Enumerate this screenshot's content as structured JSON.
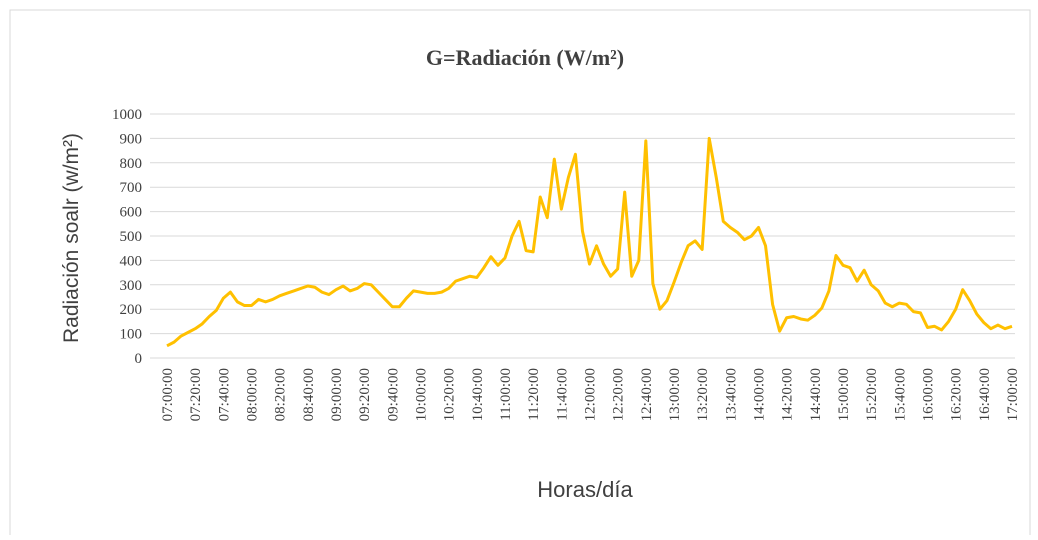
{
  "chart_data": {
    "type": "line",
    "title": "G=Radiación (W/m²)",
    "x_label": "Horas/día",
    "y_label": "Radiación soalr (w/m²)",
    "categories": [
      "07:00:00",
      null,
      null,
      null,
      "07:20:00",
      null,
      null,
      null,
      "07:40:00",
      null,
      null,
      null,
      "08:00:00",
      null,
      null,
      null,
      "08:20:00",
      null,
      null,
      null,
      "08:40:00",
      null,
      null,
      null,
      "09:00:00",
      null,
      null,
      null,
      "09:20:00",
      null,
      null,
      null,
      "09:40:00",
      null,
      null,
      null,
      "10:00:00",
      null,
      null,
      null,
      "10:20:00",
      null,
      null,
      null,
      "10:40:00",
      null,
      null,
      null,
      "11:00:00",
      null,
      null,
      null,
      "11:20:00",
      null,
      null,
      null,
      "11:40:00",
      null,
      null,
      null,
      "12:00:00",
      null,
      null,
      null,
      "12:20:00",
      null,
      null,
      null,
      "12:40:00",
      null,
      null,
      null,
      "13:00:00",
      null,
      null,
      null,
      "13:20:00",
      null,
      null,
      null,
      "13:40:00",
      null,
      null,
      null,
      "14:00:00",
      null,
      null,
      null,
      "14:20:00",
      null,
      null,
      null,
      "14:40:00",
      null,
      null,
      null,
      "15:00:00",
      null,
      null,
      null,
      "15:20:00",
      null,
      null,
      null,
      "15:40:00",
      null,
      null,
      null,
      "16:00:00",
      null,
      null,
      null,
      "16:20:00",
      null,
      null,
      null,
      "16:40:00",
      null,
      null,
      null,
      "17:00:00"
    ],
    "values": [
      50,
      65,
      90,
      105,
      120,
      140,
      170,
      195,
      245,
      270,
      230,
      215,
      215,
      240,
      230,
      240,
      255,
      265,
      275,
      285,
      295,
      290,
      270,
      260,
      280,
      295,
      275,
      285,
      305,
      300,
      270,
      240,
      210,
      210,
      245,
      275,
      270,
      265,
      265,
      270,
      285,
      315,
      325,
      335,
      330,
      370,
      415,
      380,
      410,
      500,
      560,
      440,
      435,
      660,
      575,
      815,
      610,
      740,
      835,
      520,
      385,
      460,
      385,
      335,
      365,
      680,
      335,
      400,
      890,
      305,
      200,
      235,
      310,
      390,
      460,
      480,
      445,
      900,
      740,
      560,
      535,
      515,
      485,
      500,
      535,
      460,
      220,
      110,
      165,
      170,
      160,
      155,
      175,
      205,
      275,
      420,
      380,
      370,
      315,
      360,
      300,
      275,
      225,
      210,
      225,
      220,
      190,
      185,
      125,
      130,
      115,
      150,
      200,
      280,
      235,
      180,
      145,
      120,
      135,
      120,
      130
    ],
    "color": "#ffc000",
    "ylim": [
      0,
      1000
    ],
    "yticks": [
      0,
      100,
      200,
      300,
      400,
      500,
      600,
      700,
      800,
      900,
      1000
    ],
    "grid": true
  }
}
